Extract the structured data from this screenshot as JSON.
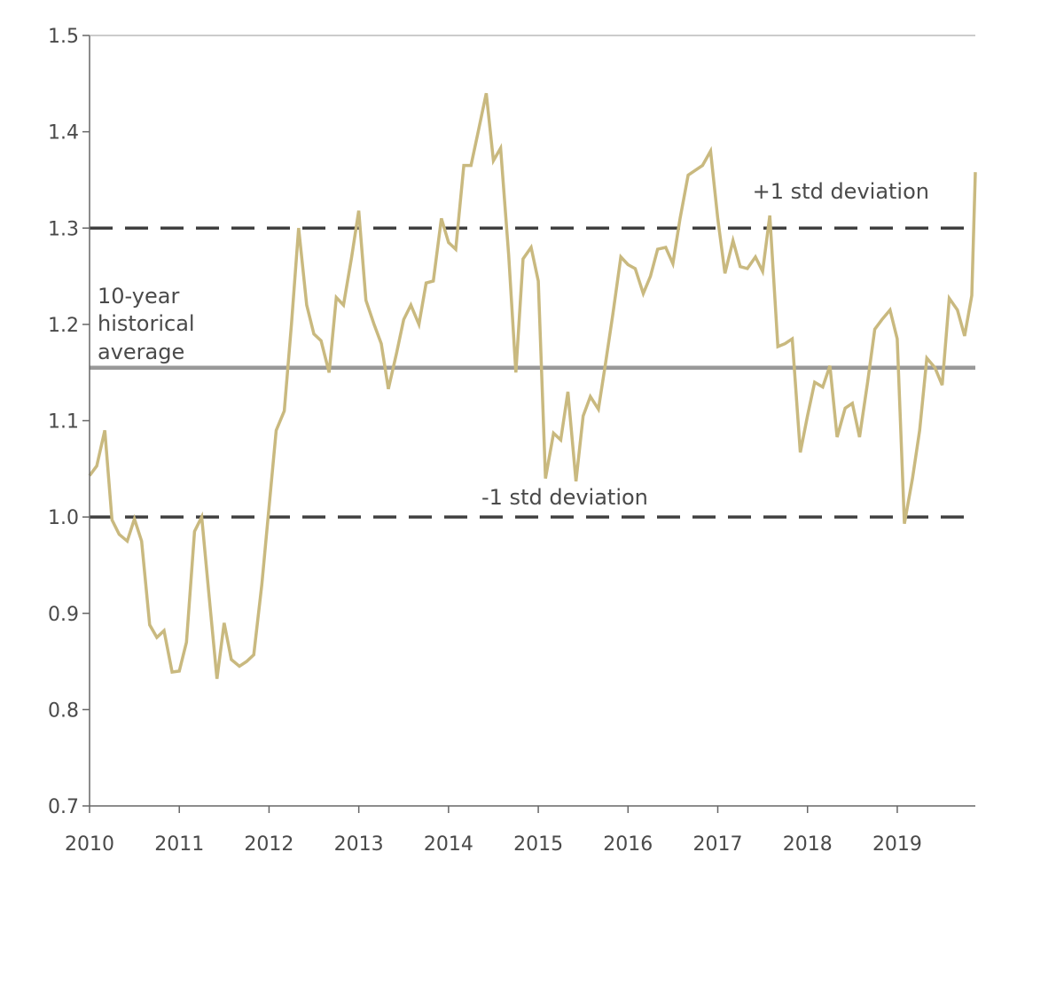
{
  "chart_data": {
    "type": "line",
    "title": "",
    "xlabel": "",
    "ylabel": "",
    "xlim": [
      2010.0,
      2019.87
    ],
    "ylim": [
      0.7,
      1.5
    ],
    "yticks": [
      "1.5",
      "1.4",
      "1.3",
      "1.2",
      "1.1",
      "1.0",
      "0.9",
      "0.8",
      "0.7"
    ],
    "ytick_values": [
      1.5,
      1.4,
      1.3,
      1.2,
      1.1,
      1.0,
      0.9,
      0.8,
      0.7
    ],
    "xticks": [
      "2010",
      "2011",
      "2012",
      "2013",
      "2014",
      "2015",
      "2016",
      "2017",
      "2018",
      "2019"
    ],
    "xtick_values": [
      2010,
      2011,
      2012,
      2013,
      2014,
      2015,
      2016,
      2017,
      2018,
      2019
    ],
    "grid": false,
    "colors": {
      "series": "#c9b97f",
      "average": "#999999",
      "std": "#404040",
      "axis": "#666666",
      "text": "#4a4a4a"
    },
    "series": [
      {
        "x": [
          2010.0,
          2010.08,
          2010.17,
          2010.25,
          2010.33,
          2010.42,
          2010.5,
          2010.58,
          2010.67,
          2010.75,
          2010.83,
          2010.92,
          2011.0,
          2011.08,
          2011.17,
          2011.25,
          2011.33,
          2011.42,
          2011.5,
          2011.58,
          2011.67,
          2011.75,
          2011.83,
          2011.92,
          2012.0,
          2012.08,
          2012.17,
          2012.25,
          2012.33,
          2012.42,
          2012.5,
          2012.58,
          2012.67,
          2012.75,
          2012.83,
          2012.92,
          2013.0,
          2013.08,
          2013.17,
          2013.25,
          2013.33,
          2013.42,
          2013.5,
          2013.58,
          2013.67,
          2013.75,
          2013.83,
          2013.92,
          2014.0,
          2014.08,
          2014.17,
          2014.25,
          2014.33,
          2014.42,
          2014.5,
          2014.58,
          2014.67,
          2014.75,
          2014.83,
          2014.92,
          2015.0,
          2015.08,
          2015.17,
          2015.25,
          2015.33,
          2015.42,
          2015.5,
          2015.58,
          2015.67,
          2015.75,
          2015.83,
          2015.92,
          2016.0,
          2016.08,
          2016.17,
          2016.25,
          2016.33,
          2016.42,
          2016.5,
          2016.58,
          2016.67,
          2016.75,
          2016.83,
          2016.92,
          2017.0,
          2017.08,
          2017.17,
          2017.25,
          2017.33,
          2017.42,
          2017.5,
          2017.58,
          2017.67,
          2017.75,
          2017.83,
          2017.92,
          2018.0,
          2018.08,
          2018.17,
          2018.25,
          2018.33,
          2018.42,
          2018.5,
          2018.58,
          2018.67,
          2018.75,
          2018.83,
          2018.92,
          2019.0,
          2019.08,
          2019.17,
          2019.25,
          2019.33,
          2019.42,
          2019.5,
          2019.58,
          2019.67,
          2019.75,
          2019.83,
          2019.87
        ],
        "values": [
          1.043,
          1.053,
          1.09,
          0.997,
          0.982,
          0.975,
          0.998,
          0.975,
          0.888,
          0.875,
          0.882,
          0.839,
          0.84,
          0.87,
          0.985,
          1.0,
          0.92,
          0.832,
          0.89,
          0.852,
          0.845,
          0.85,
          0.857,
          0.93,
          1.01,
          1.09,
          1.11,
          1.2,
          1.3,
          1.22,
          1.19,
          1.183,
          1.15,
          1.228,
          1.22,
          1.27,
          1.318,
          1.225,
          1.2,
          1.18,
          1.133,
          1.17,
          1.205,
          1.22,
          1.2,
          1.243,
          1.245,
          1.31,
          1.285,
          1.278,
          1.365,
          1.365,
          1.4,
          1.44,
          1.37,
          1.383,
          1.272,
          1.15,
          1.268,
          1.28,
          1.245,
          1.04,
          1.087,
          1.08,
          1.13,
          1.037,
          1.105,
          1.125,
          1.112,
          1.16,
          1.21,
          1.27,
          1.262,
          1.258,
          1.232,
          1.25,
          1.278,
          1.28,
          1.263,
          1.31,
          1.355,
          1.36,
          1.365,
          1.38,
          1.31,
          1.253,
          1.287,
          1.26,
          1.258,
          1.27,
          1.255,
          1.313,
          1.177,
          1.18,
          1.185,
          1.067,
          1.105,
          1.14,
          1.135,
          1.157,
          1.083,
          1.113,
          1.118,
          1.083,
          1.14,
          1.195,
          1.205,
          1.215,
          1.185,
          0.993,
          1.04,
          1.09,
          1.165,
          1.155,
          1.137,
          1.227,
          1.215,
          1.188,
          1.23,
          1.358
        ]
      }
    ],
    "reference_lines": [
      {
        "value": 1.3,
        "style": "dashed",
        "label": "+1 std deviation"
      },
      {
        "value": 1.155,
        "style": "solid",
        "label_lines": [
          "10-year",
          "historical",
          "average"
        ]
      },
      {
        "value": 1.0,
        "style": "dashed",
        "label": "-1 std deviation"
      }
    ]
  }
}
